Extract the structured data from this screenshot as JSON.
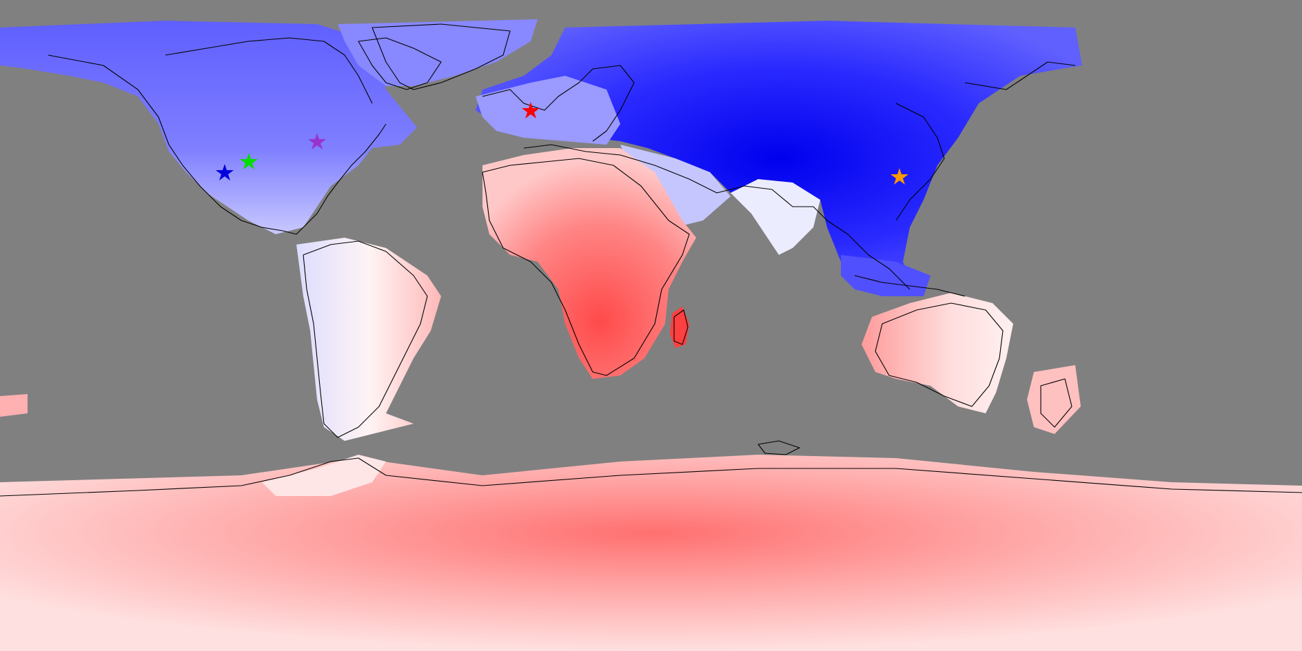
{
  "map": {
    "projection": "equirectangular",
    "colors": {
      "ocean_mask": "#808080",
      "cold_strong": "#0000ff",
      "cold_mid": "#6666ff",
      "cold_light": "#aab0ff",
      "neutral": "#ffffff",
      "warm_light": "#ffd0d0",
      "warm_mid": "#ff9090",
      "warm_strong": "#ff4444",
      "coastline": "#000000"
    },
    "markers": [
      {
        "symbol": "star",
        "color": "#ff0000"
      },
      {
        "symbol": "star",
        "color": "#9933cc"
      },
      {
        "symbol": "star",
        "color": "#00dd00"
      },
      {
        "symbol": "star",
        "color": "#0000dd"
      },
      {
        "symbol": "star",
        "color": "#ff9900"
      }
    ]
  }
}
